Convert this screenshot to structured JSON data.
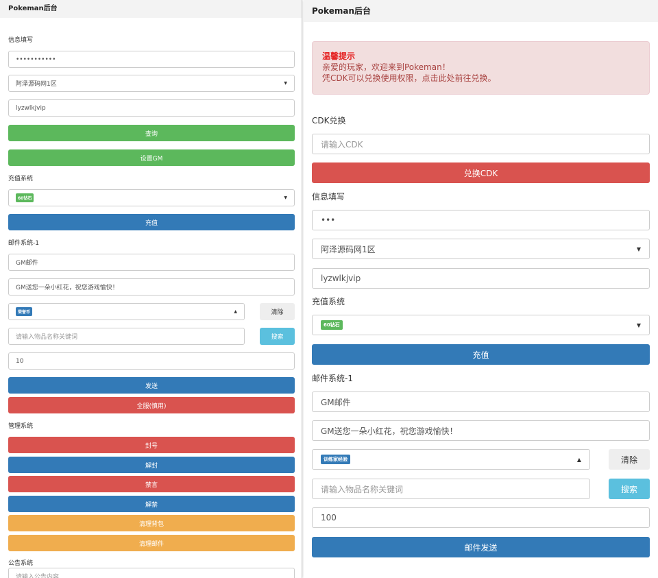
{
  "left": {
    "title": "Pokeman后台",
    "info": {
      "label": "信息填写",
      "password": "•••••••••••",
      "server": "阿泽源码网1区",
      "account": "lyzwlkjvip",
      "query_btn": "查询",
      "gm_btn": "设置GM"
    },
    "recharge": {
      "label": "充值系统",
      "item_badge": "60钻石",
      "btn": "充值"
    },
    "mail": {
      "label": "邮件系统-1",
      "title_value": "GM邮件",
      "content_value": "GM送您一朵小红花，祝您游戏愉快！",
      "item_badge": "荣誉币",
      "clear_btn": "清除",
      "search_placeholder": "请输入物品名称关键词",
      "search_btn": "搜索",
      "quantity": "10",
      "send_btn": "发送",
      "all_server_btn": "全服(慎用)"
    },
    "manage": {
      "label": "管理系统",
      "ban_btn": "封号",
      "unban_btn": "解封",
      "mute_btn": "禁言",
      "unmute_btn": "解禁",
      "clear_bag_btn": "清理背包",
      "clear_mail_btn": "清理邮件"
    },
    "notice": {
      "label": "公告系统",
      "placeholder": "请输入公告内容"
    }
  },
  "right": {
    "title": "Pokeman后台",
    "alert": {
      "heading": "温馨提示",
      "line1": "亲爱的玩家，欢迎来到Pokeman！",
      "line2": "凭CDK可以兑换使用权限，点击此处前往兑换。"
    },
    "cdk": {
      "label": "CDK兑换",
      "placeholder": "请输入CDK",
      "btn": "兑换CDK"
    },
    "info": {
      "label": "信息填写",
      "password": "•••",
      "server": "阿泽源码网1区",
      "account": "lyzwlkjvip"
    },
    "recharge": {
      "label": "充值系统",
      "item_badge": "60钻石",
      "btn": "充值"
    },
    "mail": {
      "label": "邮件系统-1",
      "title_value": "GM邮件",
      "content_value": "GM送您一朵小红花，祝您游戏愉快！",
      "item_badge": "训练家经验",
      "clear_btn": "清除",
      "search_placeholder": "请输入物品名称关键词",
      "search_btn": "搜索",
      "quantity": "100",
      "send_btn": "邮件发送"
    }
  },
  "icons": {
    "caret_down": "▼",
    "caret_up": "▲"
  },
  "colors": {
    "success": "#5cb85c",
    "primary": "#337ab7",
    "danger": "#d9534f",
    "warning": "#f0ad4e",
    "info": "#5bc0de"
  }
}
